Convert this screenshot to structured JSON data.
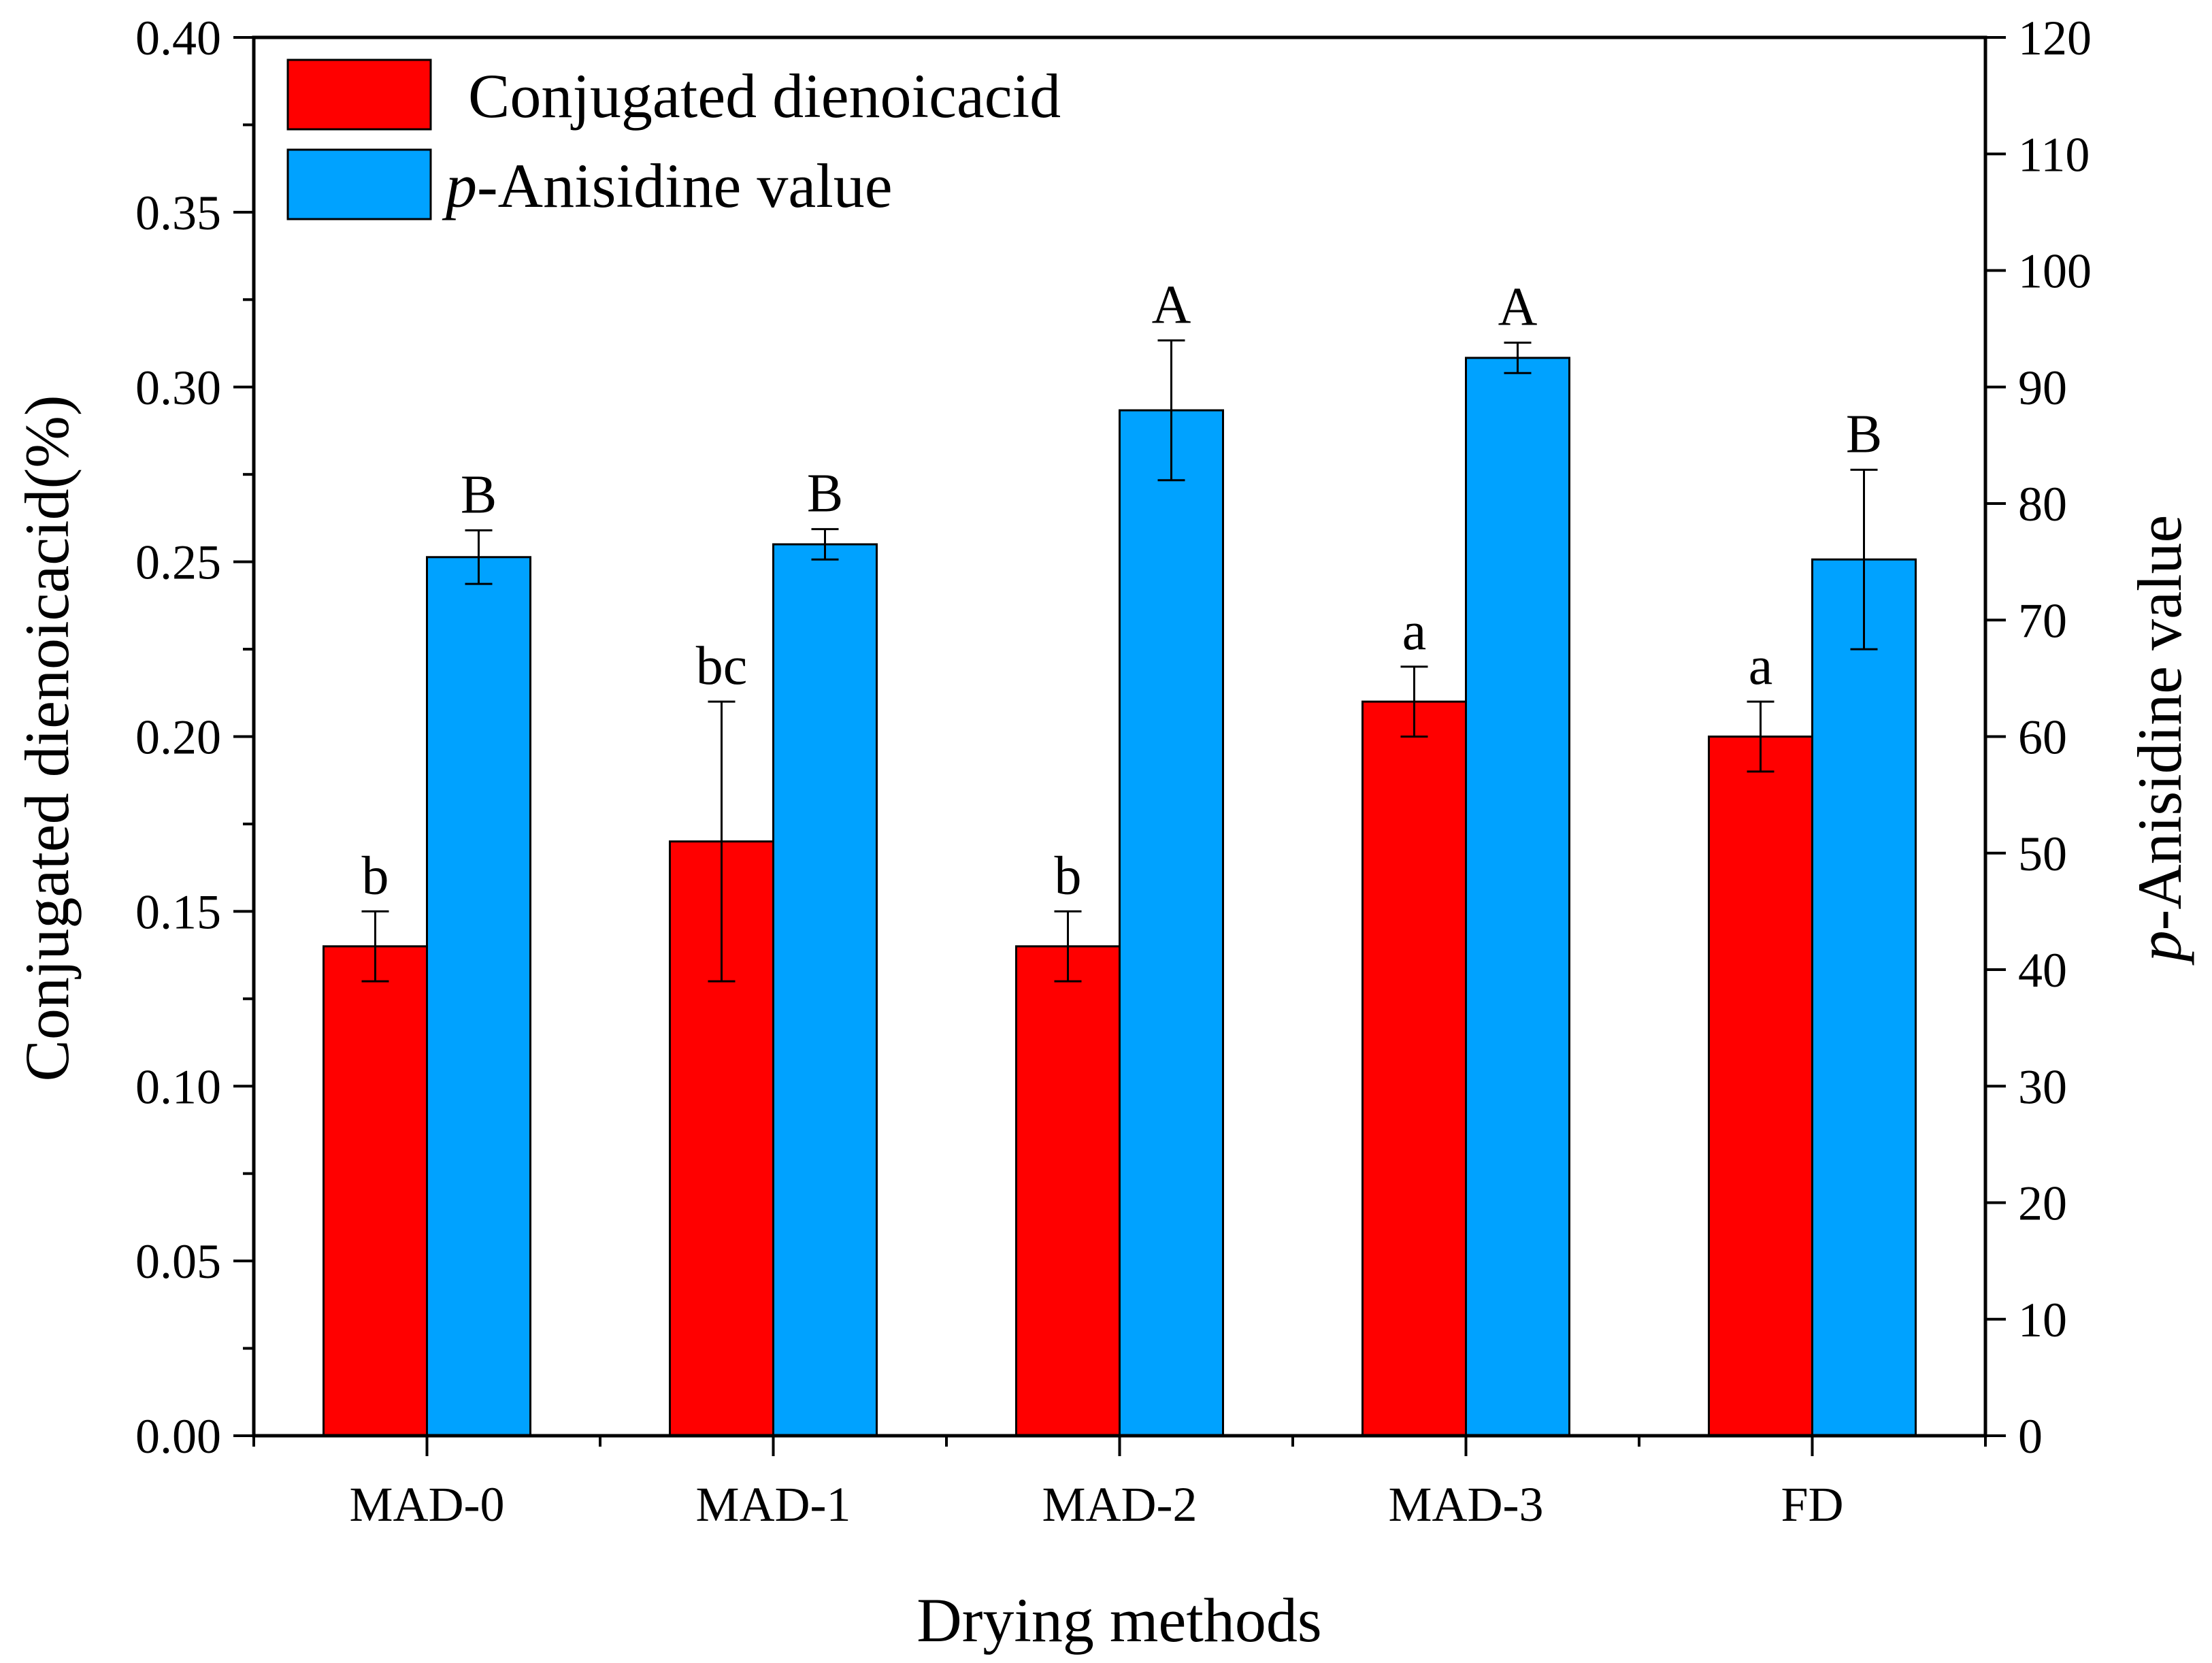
{
  "chart_data": {
    "type": "bar",
    "xlabel": "Drying methods",
    "ylabel_left": "Conjugated dienoicacid(%)",
    "ylabel_right_italic": "p",
    "ylabel_right_rest": "-Anisidine value",
    "categories": [
      "MAD-0",
      "MAD-1",
      "MAD-2",
      "MAD-3",
      "FD"
    ],
    "left_axis": {
      "ylim": [
        0,
        0.4
      ],
      "ticks": [
        "0.00",
        "0.05",
        "0.10",
        "0.15",
        "0.20",
        "0.25",
        "0.30",
        "0.35",
        "0.40"
      ]
    },
    "right_axis": {
      "ylim": [
        0,
        120
      ],
      "ticks": [
        "0",
        "10",
        "20",
        "30",
        "40",
        "50",
        "60",
        "70",
        "80",
        "90",
        "100",
        "110",
        "120"
      ]
    },
    "series": [
      {
        "name": "Conjugated dienoicacid",
        "axis": "left",
        "color": "#ff0000",
        "values": [
          0.14,
          0.17,
          0.14,
          0.21,
          0.2
        ],
        "errors": [
          0.01,
          0.04,
          0.01,
          0.01,
          0.01
        ],
        "sig_labels": [
          "b",
          "bc",
          "b",
          "a",
          "a"
        ]
      },
      {
        "name_italic": "p",
        "name_rest": "-Anisidine value",
        "axis": "right",
        "color": "#00a2ff",
        "values": [
          75.4,
          76.5,
          88.0,
          92.5,
          75.2
        ],
        "errors": [
          2.3,
          1.3,
          6.0,
          1.3,
          7.7
        ],
        "sig_labels": [
          "B",
          "B",
          "A",
          "A",
          "B"
        ]
      }
    ],
    "legend_position": "top-left"
  }
}
